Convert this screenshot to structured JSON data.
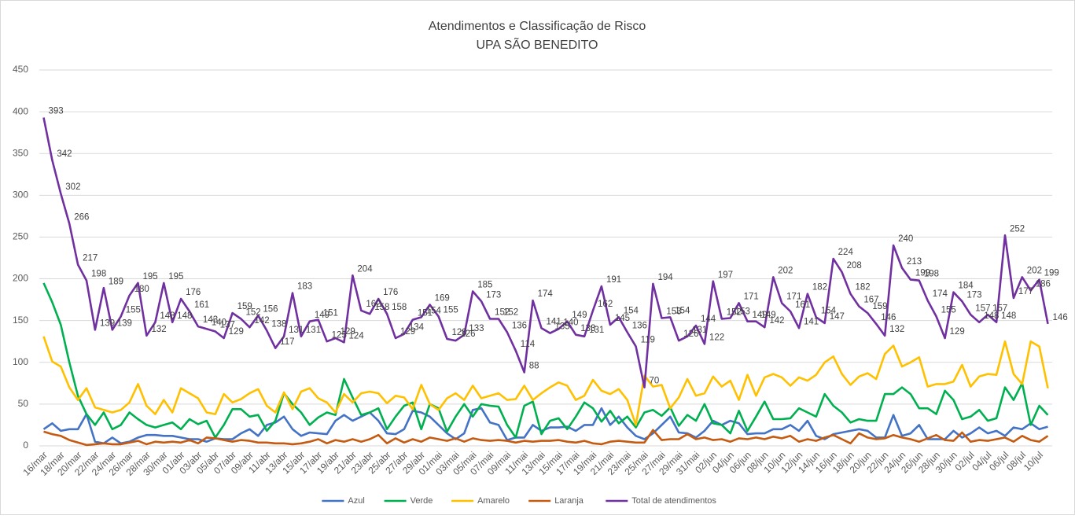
{
  "chart_data": {
    "type": "line",
    "title": "Atendimentos e Classificação de Risco",
    "subtitle": "UPA SÃO BENEDITO",
    "categories": [
      "16/mar",
      null,
      "18/mar",
      null,
      "20/mar",
      null,
      "22/mar",
      null,
      "24/mar",
      null,
      "26/mar",
      null,
      "28/mar",
      null,
      "30/mar",
      null,
      "01/abr",
      null,
      "03/abr",
      null,
      "05/abr",
      null,
      "07/abr",
      null,
      "09/abr",
      null,
      "11/abr",
      null,
      "13/abr",
      null,
      "15/abr",
      null,
      "17/abr",
      null,
      "19/abr",
      null,
      "21/abr",
      null,
      "23/abr",
      null,
      "25/abr",
      null,
      "27/abr",
      null,
      "29/abr",
      null,
      "01/mai",
      null,
      "03/mai",
      null,
      "05/mai",
      null,
      "07/mai",
      null,
      "09/mai",
      null,
      "11/mai",
      null,
      "13/mai",
      null,
      "15/mai",
      null,
      "17/mai",
      null,
      "19/mai",
      null,
      "21/mai",
      null,
      "23/mai",
      null,
      "25/mai",
      null,
      "27/mai",
      null,
      "29/mai",
      null,
      "31/mai",
      null,
      "02/jun",
      null,
      "04/jun",
      null,
      "06/jun",
      null,
      "08/jun",
      null,
      "10/jun",
      null,
      "12/jun",
      null,
      "14/jun",
      null,
      "16/jun",
      null,
      "18/jun",
      null,
      "20/jun",
      null,
      "22/jun",
      null,
      "24/jun",
      null,
      "26/jun",
      null,
      "28/jun",
      null,
      "30/jun",
      null,
      "02/jul",
      null,
      "04/jul",
      null,
      "06/jul",
      null,
      "08/jul",
      null,
      "10/jul",
      null
    ],
    "series": [
      {
        "name": "Azul",
        "color": "#4472c4",
        "values": [
          20,
          27,
          18,
          20,
          20,
          38,
          5,
          3,
          10,
          3,
          5,
          10,
          13,
          13,
          12,
          12,
          10,
          8,
          8,
          5,
          9,
          8,
          8,
          15,
          20,
          12,
          25,
          28,
          35,
          20,
          12,
          16,
          15,
          14,
          30,
          37,
          30,
          35,
          40,
          30,
          15,
          14,
          20,
          42,
          40,
          35,
          25,
          15,
          8,
          15,
          43,
          45,
          28,
          25,
          7,
          10,
          10,
          25,
          18,
          22,
          22,
          23,
          18,
          25,
          25,
          45,
          25,
          35,
          22,
          12,
          8,
          15,
          25,
          35,
          16,
          15,
          10,
          18,
          30,
          25,
          30,
          27,
          14,
          15,
          15,
          20,
          20,
          25,
          18,
          30,
          12,
          8,
          14,
          16,
          18,
          20,
          18,
          10,
          10,
          37,
          12,
          15,
          25,
          8,
          8,
          8,
          18,
          10,
          15,
          22,
          15,
          18,
          12,
          22,
          20,
          27,
          20,
          23
        ]
      },
      {
        "name": "Verde",
        "color": "#00b050",
        "values": [
          195,
          172,
          145,
          100,
          60,
          38,
          25,
          40,
          20,
          25,
          40,
          32,
          25,
          22,
          25,
          28,
          20,
          32,
          26,
          30,
          10,
          25,
          44,
          44,
          35,
          37,
          18,
          30,
          63,
          50,
          40,
          25,
          34,
          40,
          37,
          80,
          58,
          37,
          40,
          45,
          20,
          35,
          48,
          52,
          20,
          50,
          45,
          17,
          35,
          50,
          35,
          50,
          48,
          47,
          25,
          10,
          48,
          53,
          14,
          30,
          33,
          20,
          35,
          52,
          45,
          29,
          42,
          27,
          35,
          22,
          40,
          43,
          36,
          46,
          24,
          37,
          30,
          50,
          27,
          25,
          15,
          42,
          18,
          35,
          53,
          32,
          32,
          33,
          45,
          40,
          35,
          62,
          48,
          40,
          28,
          32,
          30,
          30,
          62,
          62,
          70,
          62,
          45,
          45,
          38,
          66,
          55,
          32,
          35,
          43,
          30,
          33,
          70,
          55,
          75,
          25,
          48,
          37
        ]
      },
      {
        "name": "Amarelo",
        "color": "#ffc000",
        "values": [
          131,
          101,
          95,
          70,
          55,
          69,
          46,
          43,
          40,
          43,
          52,
          74,
          48,
          38,
          55,
          40,
          69,
          63,
          57,
          40,
          38,
          62,
          52,
          56,
          63,
          68,
          48,
          40,
          64,
          44,
          65,
          69,
          57,
          52,
          40,
          62,
          52,
          63,
          65,
          63,
          51,
          60,
          58,
          44,
          73,
          50,
          43,
          57,
          63,
          55,
          72,
          57,
          60,
          63,
          55,
          56,
          72,
          55,
          63,
          70,
          76,
          72,
          55,
          60,
          79,
          66,
          62,
          68,
          55,
          25,
          84,
          71,
          73,
          45,
          58,
          80,
          60,
          63,
          83,
          71,
          78,
          55,
          85,
          60,
          82,
          86,
          82,
          72,
          82,
          78,
          85,
          100,
          107,
          86,
          73,
          83,
          87,
          80,
          110,
          120,
          95,
          100,
          106,
          71,
          74,
          74,
          77,
          97,
          71,
          83,
          86,
          85,
          125,
          86,
          74,
          125,
          119,
          69
        ]
      },
      {
        "name": "Laranja",
        "color": "#c55a11",
        "values": [
          17,
          14,
          12,
          7,
          4,
          1,
          2,
          3,
          2,
          2,
          4,
          6,
          2,
          5,
          4,
          5,
          4,
          7,
          3,
          10,
          9,
          7,
          5,
          7,
          6,
          4,
          4,
          3,
          3,
          2,
          3,
          5,
          8,
          3,
          7,
          5,
          8,
          5,
          8,
          13,
          3,
          9,
          4,
          8,
          5,
          10,
          8,
          6,
          9,
          5,
          9,
          7,
          6,
          7,
          6,
          4,
          6,
          5,
          6,
          6,
          7,
          5,
          4,
          6,
          3,
          2,
          5,
          6,
          5,
          4,
          4,
          19,
          7,
          8,
          8,
          14,
          8,
          10,
          7,
          8,
          5,
          9,
          8,
          10,
          8,
          11,
          9,
          12,
          5,
          8,
          6,
          10,
          13,
          8,
          3,
          15,
          10,
          8,
          9,
          13,
          10,
          8,
          5,
          9,
          13,
          7,
          6,
          16,
          5,
          7,
          6,
          8,
          10,
          5,
          12,
          7,
          5,
          12
        ]
      },
      {
        "name": "Total de atendimentos",
        "color": "#7030a0",
        "data_labels": true,
        "values": [
          393,
          342,
          302,
          266,
          217,
          198,
          139,
          189,
          139,
          155,
          180,
          195,
          132,
          148,
          195,
          148,
          176,
          161,
          143,
          140,
          137,
          129,
          159,
          152,
          142,
          156,
          138,
          117,
          131,
          183,
          131,
          149,
          151,
          125,
          129,
          124,
          204,
          162,
          158,
          176,
          158,
          129,
          134,
          151,
          154,
          169,
          155,
          128,
          126,
          133,
          185,
          173,
          152,
          152,
          136,
          114,
          88,
          174,
          141,
          135,
          140,
          149,
          133,
          131,
          162,
          191,
          145,
          154,
          136,
          119,
          70,
          194,
          153,
          154,
          126,
          131,
          144,
          122,
          197,
          152,
          153,
          171,
          149,
          149,
          142,
          202,
          171,
          161,
          141,
          182,
          154,
          147,
          224,
          208,
          182,
          167,
          159,
          146,
          132,
          240,
          213,
          199,
          198,
          174,
          155,
          129,
          184,
          173,
          157,
          148,
          157,
          148,
          252,
          177,
          202,
          186,
          199,
          146
        ]
      }
    ],
    "ylim": [
      0,
      450
    ],
    "yticks": [
      0,
      50,
      100,
      150,
      200,
      250,
      300,
      350,
      400,
      450
    ],
    "grid": true,
    "legend": "bottom"
  }
}
